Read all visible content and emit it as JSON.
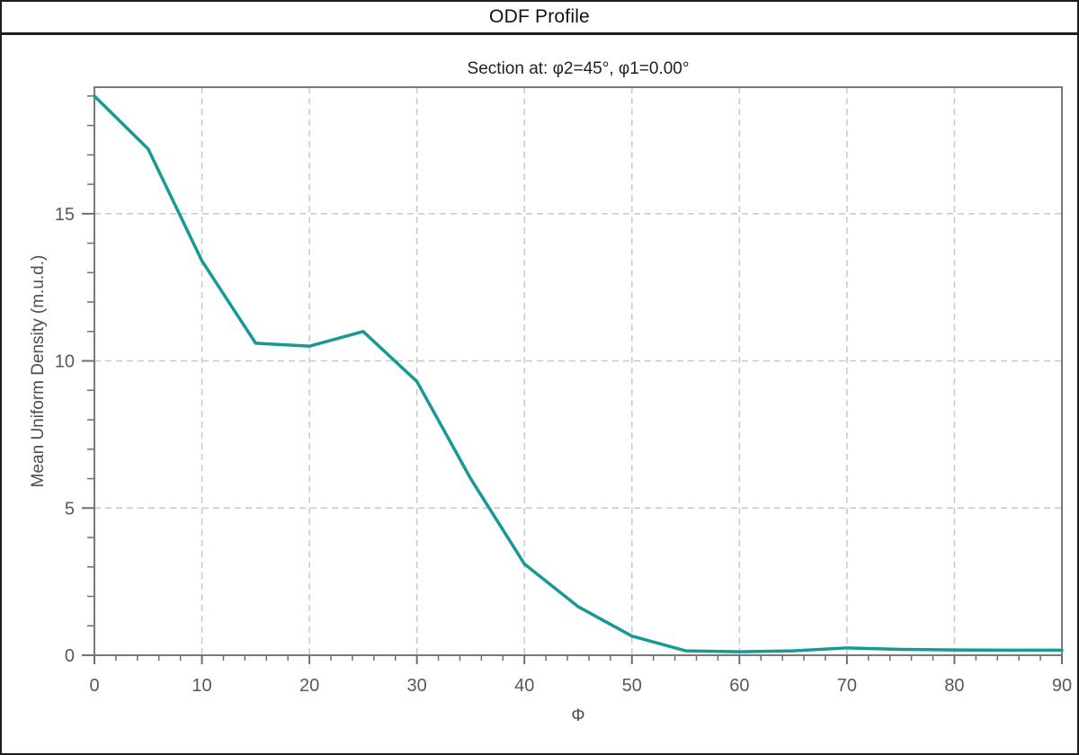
{
  "window": {
    "title": "ODF Profile"
  },
  "chart_data": {
    "type": "line",
    "title": "Section at: φ2=45°, φ1=0.00°",
    "xlabel": "Φ",
    "ylabel": "Mean Uniform Density (m.u.d.)",
    "x": [
      0,
      5,
      10,
      15,
      20,
      25,
      30,
      35,
      40,
      45,
      50,
      55,
      60,
      65,
      70,
      75,
      80,
      85,
      90
    ],
    "values": [
      19.0,
      17.2,
      13.4,
      10.6,
      10.5,
      11.0,
      9.3,
      6.0,
      3.1,
      1.65,
      0.65,
      0.15,
      0.12,
      0.15,
      0.25,
      0.2,
      0.18,
      0.17,
      0.17
    ],
    "xlim": [
      0,
      90
    ],
    "ylim": [
      0,
      19.3
    ],
    "x_major_ticks": [
      0,
      10,
      20,
      30,
      40,
      50,
      60,
      70,
      80,
      90
    ],
    "x_minor_step": 2,
    "y_major_ticks": [
      0,
      5,
      10,
      15
    ],
    "y_minor_step": 1,
    "grid": true,
    "legend_position": "none",
    "line_color": "#169A93"
  },
  "colors": {
    "line": "#169A93",
    "spine": "#7a7a7a",
    "grid": "#c9c9c9",
    "tick": "#6e6e6e",
    "tick_label": "#595959",
    "heading_text": "#1f1f1f",
    "window_border": "#1e1e1e",
    "background": "#ffffff"
  }
}
